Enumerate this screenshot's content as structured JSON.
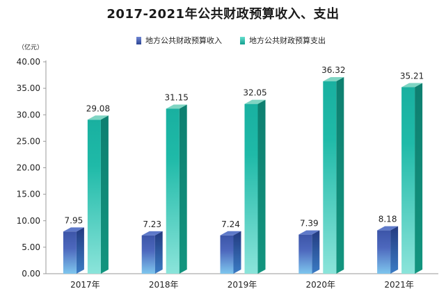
{
  "chart_data": {
    "type": "bar",
    "title": "2017-2021年公共财政预算收入、支出",
    "unit_label": "（亿元）",
    "categories": [
      "2017年",
      "2018年",
      "2019年",
      "2020年",
      "2021年"
    ],
    "series": [
      {
        "name": "地方公共财政预算收入",
        "values": [
          7.95,
          7.23,
          7.24,
          7.39,
          8.18
        ],
        "color": "#3b57a6"
      },
      {
        "name": "地方公共财政预算支出",
        "values": [
          29.08,
          31.15,
          32.05,
          36.32,
          35.21
        ],
        "color": "#1db3a2"
      }
    ],
    "y_ticks": [
      "0.00",
      "5.00",
      "10.00",
      "15.00",
      "20.00",
      "25.00",
      "30.00",
      "35.00",
      "40.00"
    ],
    "ylim": [
      0,
      40
    ],
    "grid": false,
    "legend": "top-center"
  }
}
